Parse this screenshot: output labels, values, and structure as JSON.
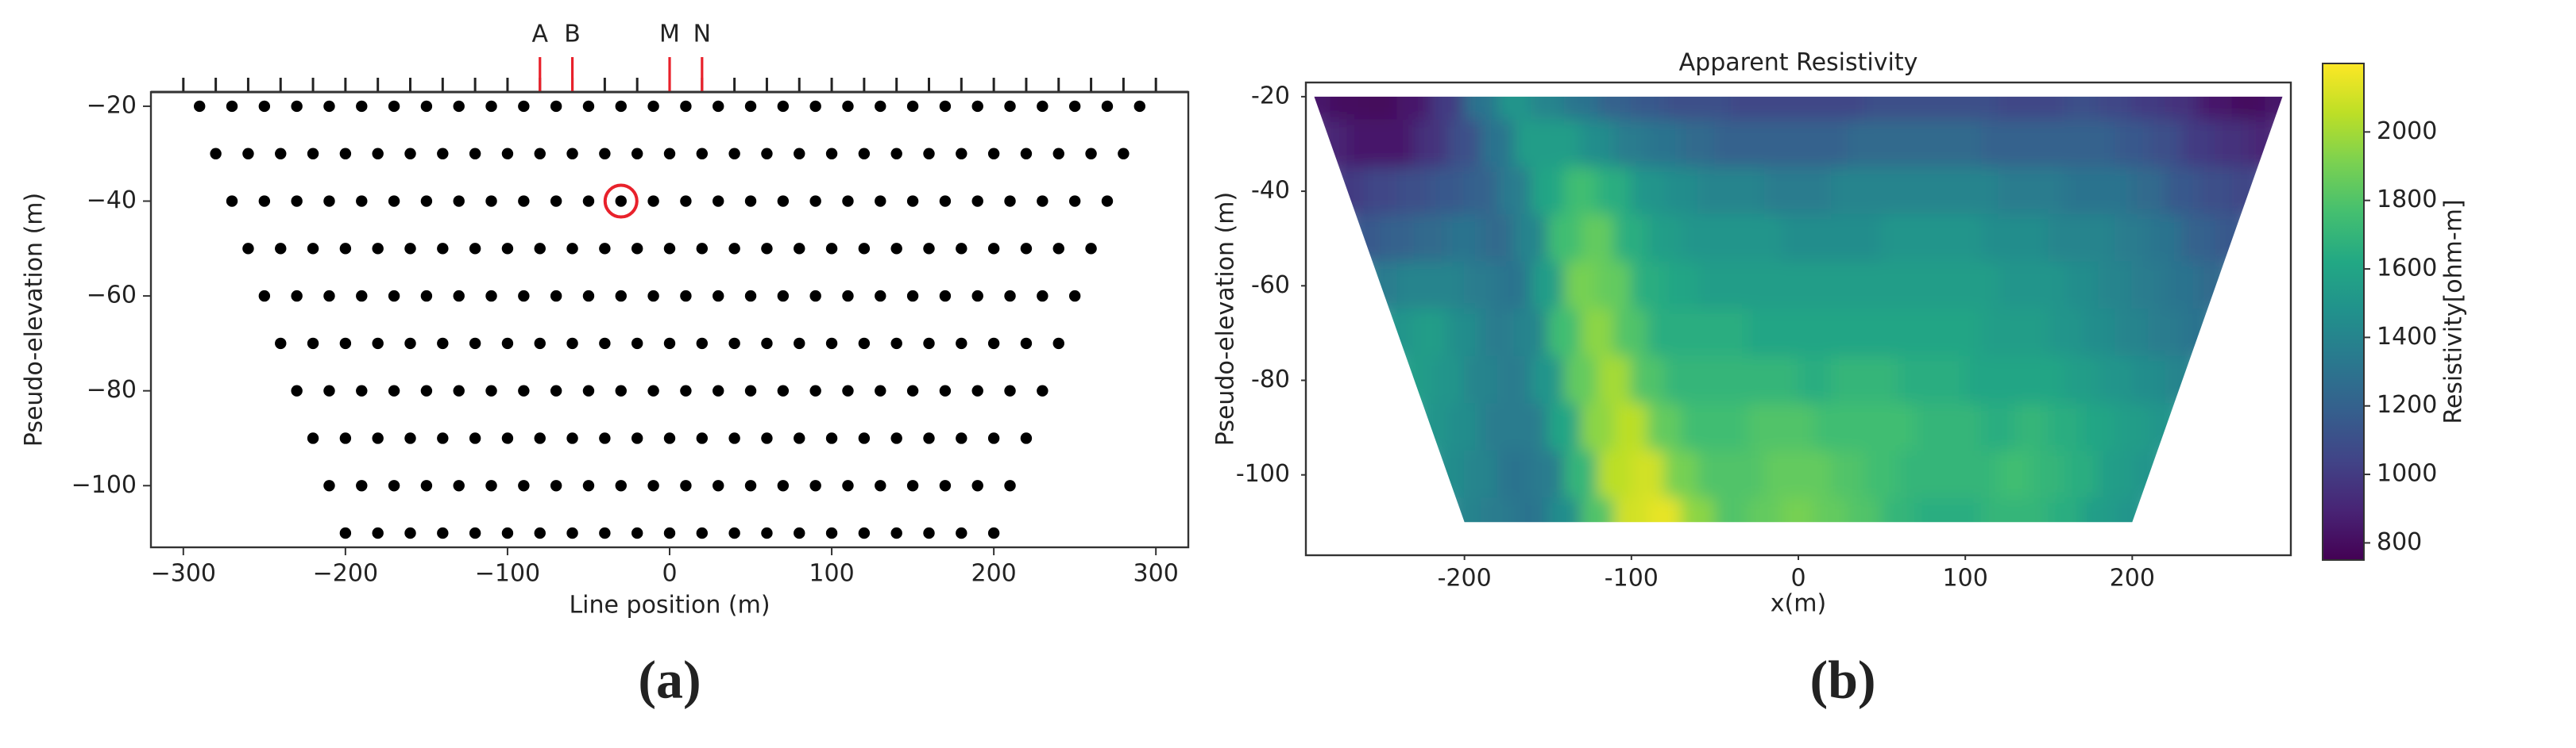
{
  "chart_data": [
    {
      "type": "scatter",
      "xlabel": "Line position (m)",
      "ylabel": "Pseudo-elevation (m)",
      "xlim": [
        -320,
        320
      ],
      "ylim": [
        -113,
        -17
      ],
      "xticks": [
        {
          "value": -300,
          "label": "−300"
        },
        {
          "value": -200,
          "label": "−200"
        },
        {
          "value": -100,
          "label": "−100"
        },
        0,
        100,
        200,
        300
      ],
      "yticks": [
        {
          "value": -20,
          "label": "−20"
        },
        {
          "value": -40,
          "label": "−40"
        },
        {
          "value": -60,
          "label": "−60"
        },
        {
          "value": -80,
          "label": "−80"
        },
        {
          "value": -100,
          "label": "−100"
        }
      ],
      "color": "#000000",
      "rows": [
        {
          "y": -20,
          "x": [
            -290,
            -270,
            -250,
            -230,
            -210,
            -190,
            -170,
            -150,
            -130,
            -110,
            -90,
            -70,
            -50,
            -30,
            -10,
            10,
            30,
            50,
            70,
            90,
            110,
            130,
            150,
            170,
            190,
            210,
            230,
            250,
            270,
            290
          ]
        },
        {
          "y": -30,
          "x": [
            -280,
            -260,
            -240,
            -220,
            -200,
            -180,
            -160,
            -140,
            -120,
            -100,
            -80,
            -60,
            -40,
            -20,
            0,
            20,
            40,
            60,
            80,
            100,
            120,
            140,
            160,
            180,
            200,
            220,
            240,
            260,
            280
          ]
        },
        {
          "y": -40,
          "x": [
            -270,
            -250,
            -230,
            -210,
            -190,
            -170,
            -150,
            -130,
            -110,
            -90,
            -70,
            -50,
            -30,
            -10,
            10,
            30,
            50,
            70,
            90,
            110,
            130,
            150,
            170,
            190,
            210,
            230,
            250,
            270
          ]
        },
        {
          "y": -50,
          "x": [
            -260,
            -240,
            -220,
            -200,
            -180,
            -160,
            -140,
            -120,
            -100,
            -80,
            -60,
            -40,
            -20,
            0,
            20,
            40,
            60,
            80,
            100,
            120,
            140,
            160,
            180,
            200,
            220,
            240,
            260
          ]
        },
        {
          "y": -60,
          "x": [
            -250,
            -230,
            -210,
            -190,
            -170,
            -150,
            -130,
            -110,
            -90,
            -70,
            -50,
            -30,
            -10,
            10,
            30,
            50,
            70,
            90,
            110,
            130,
            150,
            170,
            190,
            210,
            230,
            250
          ]
        },
        {
          "y": -70,
          "x": [
            -240,
            -220,
            -200,
            -180,
            -160,
            -140,
            -120,
            -100,
            -80,
            -60,
            -40,
            -20,
            0,
            20,
            40,
            60,
            80,
            100,
            120,
            140,
            160,
            180,
            200,
            220,
            240
          ]
        },
        {
          "y": -80,
          "x": [
            -230,
            -210,
            -190,
            -170,
            -150,
            -130,
            -110,
            -90,
            -70,
            -50,
            -30,
            -10,
            10,
            30,
            50,
            70,
            90,
            110,
            130,
            150,
            170,
            190,
            210,
            230
          ]
        },
        {
          "y": -90,
          "x": [
            -220,
            -200,
            -180,
            -160,
            -140,
            -120,
            -100,
            -80,
            -60,
            -40,
            -20,
            0,
            20,
            40,
            60,
            80,
            100,
            120,
            140,
            160,
            180,
            200,
            220
          ]
        },
        {
          "y": -100,
          "x": [
            -210,
            -190,
            -170,
            -150,
            -130,
            -110,
            -90,
            -70,
            -50,
            -30,
            -10,
            10,
            30,
            50,
            70,
            90,
            110,
            130,
            150,
            170,
            190,
            210
          ]
        },
        {
          "y": -110,
          "x": [
            -200,
            -180,
            -160,
            -140,
            -120,
            -100,
            -80,
            -60,
            -40,
            -20,
            0,
            20,
            40,
            60,
            80,
            100,
            120,
            140,
            160,
            180,
            200
          ]
        }
      ],
      "electrodes": [
        -300,
        -280,
        -260,
        -240,
        -220,
        -200,
        -180,
        -160,
        -140,
        -120,
        -100,
        -80,
        -60,
        -40,
        -20,
        0,
        20,
        40,
        60,
        80,
        100,
        120,
        140,
        160,
        180,
        200,
        220,
        240,
        260,
        280,
        300
      ],
      "electrode_labels": [
        {
          "label": "A",
          "x": -80
        },
        {
          "label": "B",
          "x": -60
        },
        {
          "label": "M",
          "x": 0
        },
        {
          "label": "N",
          "x": 20
        }
      ],
      "electrode_color": "#e8212b",
      "highlight": {
        "x": -30,
        "y": -40
      },
      "panel_label": "(a)"
    },
    {
      "type": "contour",
      "title": "Apparent Resistivity",
      "xlabel": "x(m)",
      "ylabel": "Pseudo-elevation (m)",
      "xlim": [
        -295,
        295
      ],
      "ylim": [
        -117,
        -17
      ],
      "xticks": [
        -200,
        -100,
        0,
        100,
        200
      ],
      "yticks": [
        -20,
        -40,
        -60,
        -80,
        -100
      ],
      "rows": [
        {
          "y": -20,
          "x": [
            -290,
            -270,
            -250,
            -230,
            -210,
            -190,
            -170,
            -150,
            -130,
            -110,
            -90,
            -70,
            -50,
            -30,
            -10,
            10,
            30,
            50,
            70,
            90,
            110,
            130,
            150,
            170,
            190,
            210,
            230,
            250,
            270,
            290
          ],
          "values": [
            850,
            800,
            780,
            850,
            1000,
            1300,
            1500,
            1400,
            1300,
            1200,
            1150,
            1100,
            1100,
            1050,
            1050,
            1050,
            1050,
            1100,
            1100,
            1100,
            1100,
            1050,
            1050,
            1100,
            1050,
            1000,
            950,
            850,
            800,
            850
          ]
        },
        {
          "y": -30,
          "x": [
            -280,
            -260,
            -240,
            -220,
            -200,
            -180,
            -160,
            -140,
            -120,
            -100,
            -80,
            -60,
            -40,
            -20,
            0,
            20,
            40,
            60,
            80,
            100,
            120,
            140,
            160,
            180,
            200,
            220,
            240,
            260,
            280
          ],
          "values": [
            900,
            850,
            850,
            950,
            1100,
            1300,
            1550,
            1550,
            1450,
            1350,
            1300,
            1250,
            1200,
            1200,
            1200,
            1200,
            1250,
            1250,
            1250,
            1250,
            1200,
            1200,
            1200,
            1200,
            1150,
            1100,
            1000,
            950,
            900
          ]
        },
        {
          "y": -40,
          "x": [
            -270,
            -250,
            -230,
            -210,
            -190,
            -170,
            -150,
            -130,
            -110,
            -90,
            -70,
            -50,
            -30,
            -10,
            10,
            30,
            50,
            70,
            90,
            110,
            130,
            150,
            170,
            190,
            210,
            230,
            250,
            270
          ],
          "values": [
            1000,
            1050,
            1100,
            1150,
            1200,
            1350,
            1600,
            1750,
            1650,
            1500,
            1450,
            1400,
            1400,
            1350,
            1350,
            1400,
            1400,
            1400,
            1400,
            1400,
            1350,
            1350,
            1300,
            1300,
            1250,
            1150,
            1100,
            1050
          ]
        },
        {
          "y": -50,
          "x": [
            -260,
            -240,
            -220,
            -200,
            -180,
            -160,
            -140,
            -120,
            -100,
            -80,
            -60,
            -40,
            -20,
            0,
            20,
            40,
            60,
            80,
            100,
            120,
            140,
            160,
            180,
            200,
            220,
            240,
            260
          ],
          "values": [
            1150,
            1200,
            1250,
            1300,
            1250,
            1400,
            1750,
            1850,
            1650,
            1550,
            1500,
            1500,
            1500,
            1450,
            1450,
            1450,
            1500,
            1500,
            1500,
            1450,
            1450,
            1400,
            1400,
            1350,
            1300,
            1200,
            1150
          ]
        },
        {
          "y": -60,
          "x": [
            -250,
            -230,
            -210,
            -190,
            -170,
            -150,
            -130,
            -110,
            -90,
            -70,
            -50,
            -30,
            -10,
            10,
            30,
            50,
            70,
            90,
            110,
            130,
            150,
            170,
            190,
            210,
            230,
            250
          ],
          "values": [
            1350,
            1400,
            1400,
            1350,
            1300,
            1550,
            1900,
            1850,
            1650,
            1600,
            1550,
            1550,
            1550,
            1550,
            1550,
            1550,
            1550,
            1550,
            1550,
            1500,
            1500,
            1450,
            1400,
            1350,
            1300,
            1250
          ]
        },
        {
          "y": -70,
          "x": [
            -240,
            -220,
            -200,
            -180,
            -160,
            -140,
            -120,
            -100,
            -80,
            -60,
            -40,
            -20,
            0,
            20,
            40,
            60,
            80,
            100,
            120,
            140,
            160,
            180,
            200,
            220,
            240
          ],
          "values": [
            1500,
            1550,
            1450,
            1350,
            1400,
            1750,
            1950,
            1800,
            1650,
            1650,
            1650,
            1600,
            1600,
            1600,
            1600,
            1600,
            1600,
            1600,
            1550,
            1550,
            1500,
            1450,
            1400,
            1350,
            1300
          ]
        },
        {
          "y": -80,
          "x": [
            -230,
            -210,
            -190,
            -170,
            -150,
            -130,
            -110,
            -90,
            -70,
            -50,
            -30,
            -10,
            10,
            30,
            50,
            70,
            90,
            110,
            130,
            150,
            170,
            190,
            210,
            230
          ],
          "values": [
            1550,
            1500,
            1400,
            1350,
            1500,
            1850,
            2000,
            1800,
            1700,
            1700,
            1700,
            1700,
            1650,
            1700,
            1700,
            1650,
            1650,
            1600,
            1600,
            1600,
            1550,
            1500,
            1450,
            1400
          ]
        },
        {
          "y": -90,
          "x": [
            -220,
            -200,
            -180,
            -160,
            -140,
            -120,
            -100,
            -80,
            -60,
            -40,
            -20,
            0,
            20,
            40,
            60,
            80,
            100,
            120,
            140,
            160,
            180,
            200,
            220
          ],
          "values": [
            1500,
            1450,
            1350,
            1350,
            1600,
            1950,
            2050,
            1850,
            1750,
            1750,
            1800,
            1800,
            1750,
            1750,
            1750,
            1700,
            1700,
            1650,
            1700,
            1650,
            1600,
            1550,
            1500
          ]
        },
        {
          "y": -100,
          "x": [
            -210,
            -190,
            -170,
            -150,
            -130,
            -110,
            -90,
            -70,
            -50,
            -30,
            -10,
            10,
            30,
            50,
            70,
            90,
            110,
            130,
            150,
            170,
            190,
            210
          ],
          "values": [
            1450,
            1400,
            1300,
            1350,
            1700,
            2050,
            2100,
            1900,
            1800,
            1800,
            1850,
            1850,
            1800,
            1750,
            1700,
            1700,
            1700,
            1750,
            1700,
            1650,
            1550,
            1500
          ]
        },
        {
          "y": -110,
          "x": [
            -200,
            -180,
            -160,
            -140,
            -120,
            -100,
            -80,
            -60,
            -40,
            -20,
            0,
            20,
            40,
            60,
            80,
            100,
            120,
            140,
            160,
            180,
            200
          ],
          "values": [
            1400,
            1350,
            1300,
            1450,
            1800,
            2100,
            2150,
            1950,
            1800,
            1850,
            1900,
            1850,
            1800,
            1700,
            1650,
            1650,
            1700,
            1700,
            1650,
            1550,
            1500
          ]
        }
      ],
      "colorbar": {
        "label": "Resistivity[ohm-m]",
        "lim": [
          750,
          2200
        ],
        "ticks": [
          800,
          1000,
          1200,
          1400,
          1600,
          1800,
          2000
        ],
        "colormap": "viridis"
      },
      "panel_label": "(b)"
    }
  ]
}
